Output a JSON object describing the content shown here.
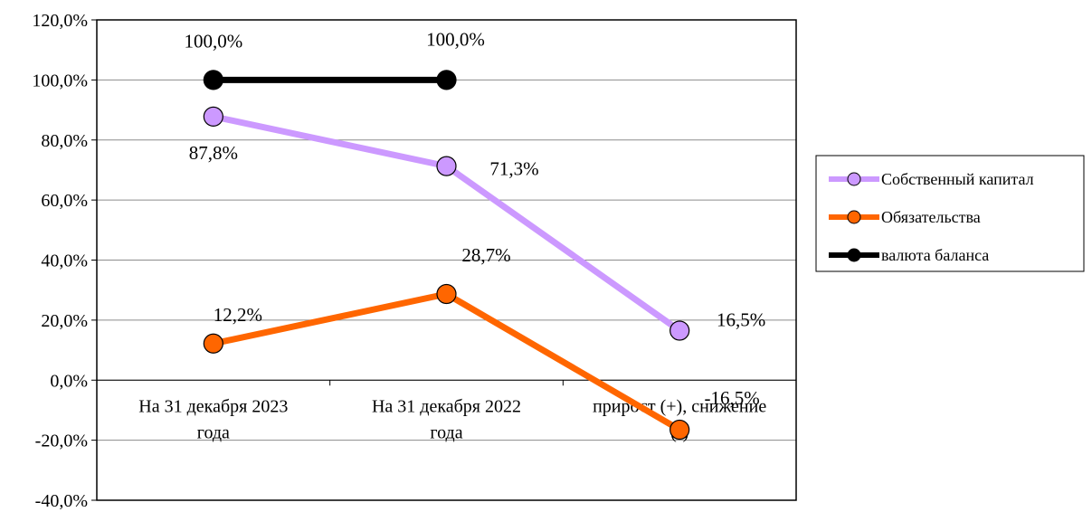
{
  "chart_data": {
    "type": "line",
    "categories": [
      [
        "На 31 декабря 2023",
        "года"
      ],
      [
        "На 31 декабря 2022",
        "года"
      ],
      [
        "прирост (+), снижение",
        "(-)"
      ]
    ],
    "ylim": [
      -40,
      120
    ],
    "yticks": [
      120,
      100,
      80,
      60,
      40,
      20,
      0,
      -20,
      -40
    ],
    "ytick_labels": [
      "120,0%",
      "100,0%",
      "80,0%",
      "60,0%",
      "40,0%",
      "20,0%",
      "0,0%",
      "-20,0%",
      "-40,0%"
    ],
    "grid": true,
    "legend_position": "right",
    "series": [
      {
        "name": "Собственный капитал",
        "color": "#cc99ff",
        "values": [
          87.8,
          71.3,
          16.5
        ],
        "labels": [
          "87,8%",
          "71,3%",
          "16,5%"
        ]
      },
      {
        "name": "Обязательства",
        "color": "#ff6600",
        "values": [
          12.2,
          28.7,
          -16.5
        ],
        "labels": [
          "12,2%",
          "28,7%",
          "-16,5%"
        ]
      },
      {
        "name": "валюта баланса",
        "color": "#000000",
        "values": [
          100.0,
          100.0,
          null
        ],
        "labels": [
          "100,0%",
          "100,0%",
          null
        ]
      }
    ]
  }
}
